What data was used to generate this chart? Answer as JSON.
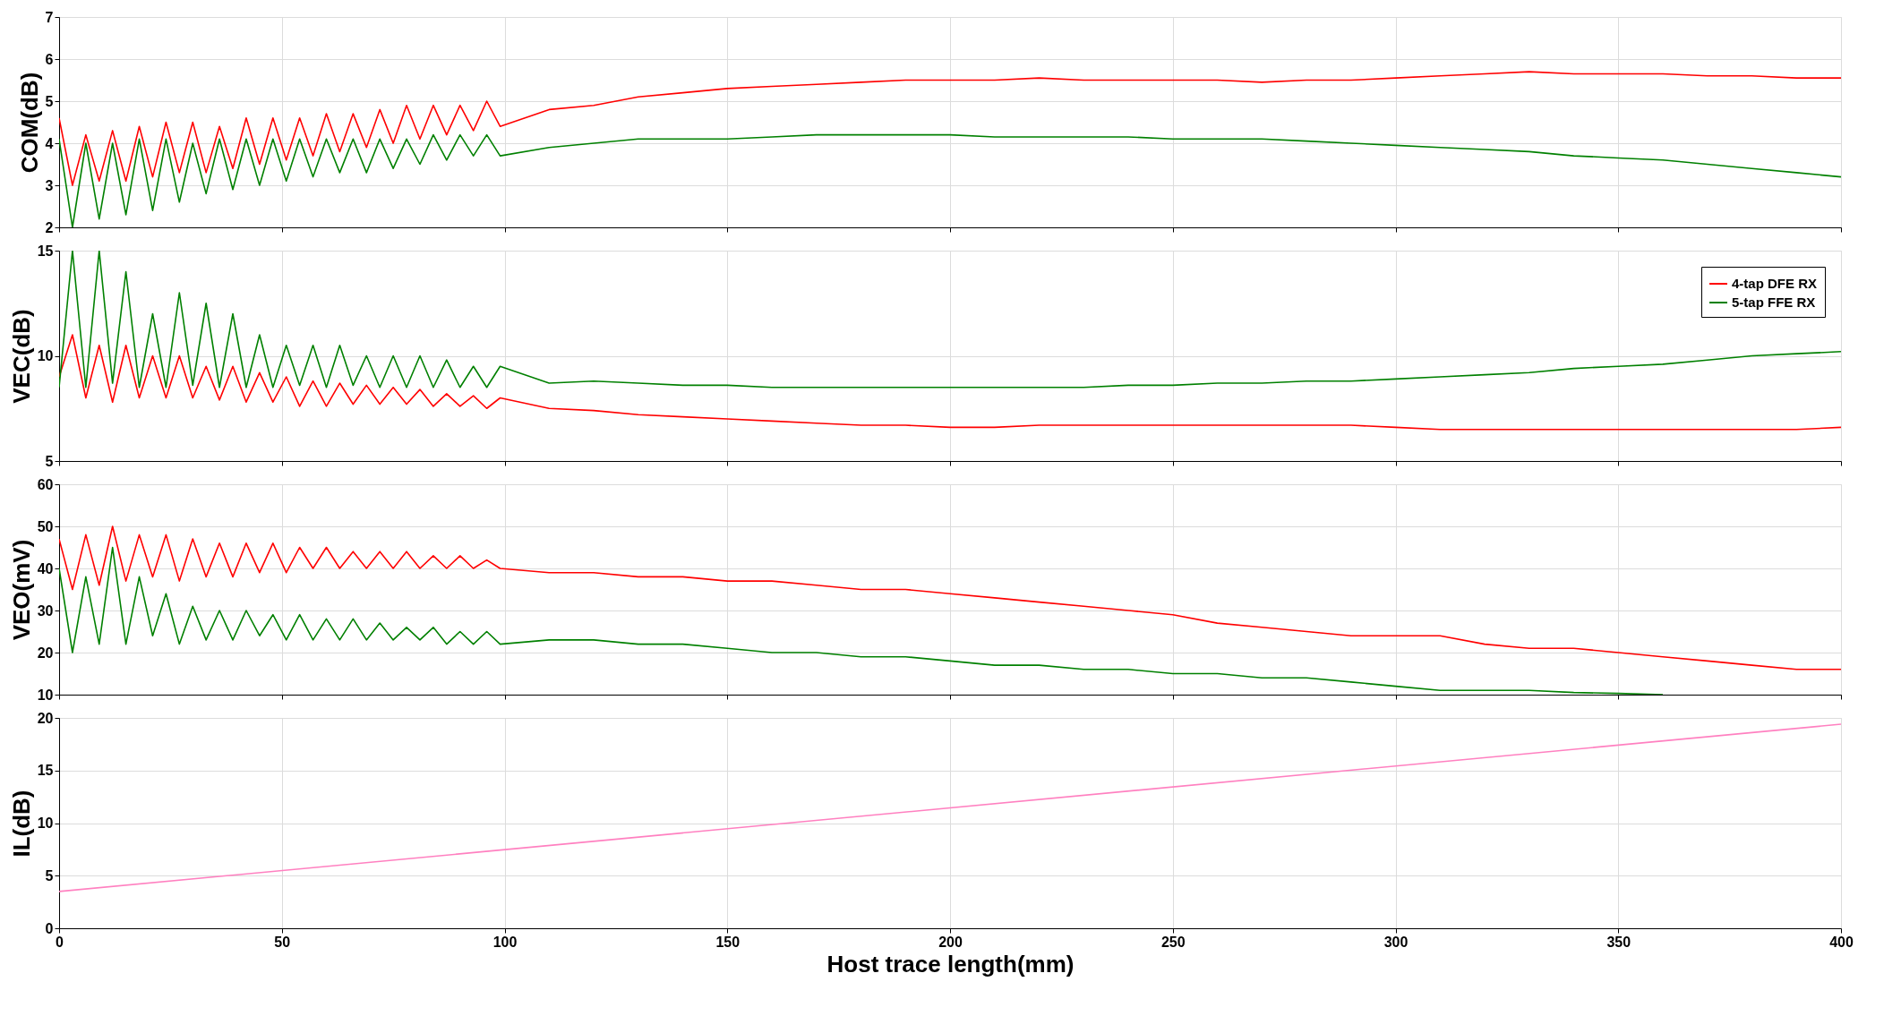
{
  "chart_data": [
    {
      "type": "line",
      "ylabel": "COM(dB)",
      "xlim": [
        0,
        400
      ],
      "xticks": [
        0,
        50,
        100,
        150,
        200,
        250,
        300,
        350,
        400
      ],
      "ylim": [
        2,
        7
      ],
      "yticks": [
        2,
        3,
        4,
        5,
        6,
        7
      ],
      "grid": true,
      "tick_labels": "y",
      "line_style": "solid",
      "x": [
        0,
        3,
        6,
        9,
        12,
        15,
        18,
        21,
        24,
        27,
        30,
        33,
        36,
        39,
        42,
        45,
        48,
        51,
        54,
        57,
        60,
        63,
        66,
        69,
        72,
        75,
        78,
        81,
        84,
        87,
        90,
        93,
        96,
        99,
        110,
        120,
        130,
        140,
        150,
        160,
        170,
        180,
        190,
        200,
        210,
        220,
        230,
        240,
        250,
        260,
        270,
        280,
        290,
        300,
        310,
        320,
        330,
        340,
        350,
        360,
        370,
        380,
        390,
        400
      ],
      "series": [
        {
          "color": "#ff0000",
          "values": [
            4.6,
            3.0,
            4.2,
            3.1,
            4.3,
            3.1,
            4.4,
            3.2,
            4.5,
            3.3,
            4.5,
            3.3,
            4.4,
            3.4,
            4.6,
            3.5,
            4.6,
            3.6,
            4.6,
            3.7,
            4.7,
            3.8,
            4.7,
            3.9,
            4.8,
            4.0,
            4.9,
            4.1,
            4.9,
            4.2,
            4.9,
            4.3,
            5.0,
            4.4,
            4.8,
            4.9,
            5.1,
            5.2,
            5.3,
            5.35,
            5.4,
            5.45,
            5.5,
            5.5,
            5.5,
            5.55,
            5.5,
            5.5,
            5.5,
            5.5,
            5.45,
            5.5,
            5.5,
            5.55,
            5.6,
            5.65,
            5.7,
            5.65,
            5.65,
            5.65,
            5.6,
            5.6,
            5.55,
            5.55
          ]
        },
        {
          "color": "#008000",
          "values": [
            4.1,
            2.0,
            4.0,
            2.2,
            4.0,
            2.3,
            4.1,
            2.4,
            4.1,
            2.6,
            4.0,
            2.8,
            4.1,
            2.9,
            4.1,
            3.0,
            4.1,
            3.1,
            4.1,
            3.2,
            4.1,
            3.3,
            4.1,
            3.3,
            4.1,
            3.4,
            4.1,
            3.5,
            4.2,
            3.6,
            4.2,
            3.7,
            4.2,
            3.7,
            3.9,
            4.0,
            4.1,
            4.1,
            4.1,
            4.15,
            4.2,
            4.2,
            4.2,
            4.2,
            4.15,
            4.15,
            4.15,
            4.15,
            4.1,
            4.1,
            4.1,
            4.05,
            4.0,
            3.95,
            3.9,
            3.85,
            3.8,
            3.7,
            3.65,
            3.6,
            3.5,
            3.4,
            3.3,
            3.2
          ]
        }
      ]
    },
    {
      "type": "line",
      "ylabel": "VEC(dB)",
      "xlim": [
        0,
        400
      ],
      "xticks": [
        0,
        50,
        100,
        150,
        200,
        250,
        300,
        350,
        400
      ],
      "ylim": [
        5,
        15
      ],
      "yticks": [
        5,
        10,
        15
      ],
      "grid": true,
      "tick_labels": "y",
      "legend": "top right",
      "line_style": "solid",
      "x": [
        0,
        3,
        6,
        9,
        12,
        15,
        18,
        21,
        24,
        27,
        30,
        33,
        36,
        39,
        42,
        45,
        48,
        51,
        54,
        57,
        60,
        63,
        66,
        69,
        72,
        75,
        78,
        81,
        84,
        87,
        90,
        93,
        96,
        99,
        110,
        120,
        130,
        140,
        150,
        160,
        170,
        180,
        190,
        200,
        210,
        220,
        230,
        240,
        250,
        260,
        270,
        280,
        290,
        300,
        310,
        320,
        330,
        340,
        350,
        360,
        370,
        380,
        390,
        400
      ],
      "series": [
        {
          "name": "4-tap DFE RX",
          "color": "#ff0000",
          "values": [
            9.0,
            11.0,
            8.0,
            10.5,
            7.8,
            10.5,
            8.0,
            10.0,
            8.0,
            10.0,
            8.0,
            9.5,
            7.9,
            9.5,
            7.8,
            9.2,
            7.8,
            9.0,
            7.6,
            8.8,
            7.6,
            8.7,
            7.7,
            8.6,
            7.7,
            8.5,
            7.7,
            8.4,
            7.6,
            8.2,
            7.6,
            8.1,
            7.5,
            8.0,
            7.5,
            7.4,
            7.2,
            7.1,
            7.0,
            6.9,
            6.8,
            6.7,
            6.7,
            6.6,
            6.6,
            6.7,
            6.7,
            6.7,
            6.7,
            6.7,
            6.7,
            6.7,
            6.7,
            6.6,
            6.5,
            6.5,
            6.5,
            6.5,
            6.5,
            6.5,
            6.5,
            6.5,
            6.5,
            6.6
          ]
        },
        {
          "name": "5-tap FFE RX",
          "color": "#008000",
          "values": [
            8.5,
            15.0,
            8.5,
            15.0,
            8.7,
            14.0,
            8.5,
            12.0,
            8.5,
            13.0,
            8.6,
            12.5,
            8.5,
            12.0,
            8.5,
            11.0,
            8.5,
            10.5,
            8.6,
            10.5,
            8.5,
            10.5,
            8.6,
            10.0,
            8.5,
            10.0,
            8.5,
            10.0,
            8.5,
            9.8,
            8.5,
            9.5,
            8.5,
            9.5,
            8.7,
            8.8,
            8.7,
            8.6,
            8.6,
            8.5,
            8.5,
            8.5,
            8.5,
            8.5,
            8.5,
            8.5,
            8.5,
            8.6,
            8.6,
            8.7,
            8.7,
            8.8,
            8.8,
            8.9,
            9.0,
            9.1,
            9.2,
            9.4,
            9.5,
            9.6,
            9.8,
            10.0,
            10.1,
            10.2
          ]
        }
      ]
    },
    {
      "type": "line",
      "ylabel": "VEO(mV)",
      "xlim": [
        0,
        400
      ],
      "xticks": [
        0,
        50,
        100,
        150,
        200,
        250,
        300,
        350,
        400
      ],
      "ylim": [
        10,
        60
      ],
      "yticks": [
        10,
        20,
        30,
        40,
        50,
        60
      ],
      "grid": true,
      "tick_labels": "y",
      "line_style": "solid",
      "x": [
        0,
        3,
        6,
        9,
        12,
        15,
        18,
        21,
        24,
        27,
        30,
        33,
        36,
        39,
        42,
        45,
        48,
        51,
        54,
        57,
        60,
        63,
        66,
        69,
        72,
        75,
        78,
        81,
        84,
        87,
        90,
        93,
        96,
        99,
        110,
        120,
        130,
        140,
        150,
        160,
        170,
        180,
        190,
        200,
        210,
        220,
        230,
        240,
        250,
        260,
        270,
        280,
        290,
        300,
        310,
        320,
        330,
        340,
        350,
        360,
        370,
        380,
        390,
        400
      ],
      "series": [
        {
          "color": "#ff0000",
          "values": [
            47,
            35,
            48,
            36,
            50,
            37,
            48,
            38,
            48,
            37,
            47,
            38,
            46,
            38,
            46,
            39,
            46,
            39,
            45,
            40,
            45,
            40,
            44,
            40,
            44,
            40,
            44,
            40,
            43,
            40,
            43,
            40,
            42,
            40,
            39,
            39,
            38,
            38,
            37,
            37,
            36,
            35,
            35,
            34,
            33,
            32,
            31,
            30,
            29,
            27,
            26,
            25,
            24,
            24,
            24,
            22,
            21,
            21,
            20,
            19,
            18,
            17,
            16,
            16
          ]
        },
        {
          "color": "#008000",
          "values": [
            40,
            20,
            38,
            22,
            45,
            22,
            38,
            24,
            34,
            22,
            31,
            23,
            30,
            23,
            30,
            24,
            29,
            23,
            29,
            23,
            28,
            23,
            28,
            23,
            27,
            23,
            26,
            23,
            26,
            22,
            25,
            22,
            25,
            22,
            23,
            23,
            22,
            22,
            21,
            20,
            20,
            19,
            19,
            18,
            17,
            17,
            16,
            16,
            15,
            15,
            14,
            14,
            13,
            12,
            11,
            11,
            11,
            10.5,
            10.3,
            10,
            null,
            null,
            null,
            null
          ]
        }
      ]
    },
    {
      "type": "line",
      "ylabel": "IL(dB)",
      "xlabel": "Host trace length(mm)",
      "xlim": [
        0,
        400
      ],
      "xticks": [
        0,
        50,
        100,
        150,
        200,
        250,
        300,
        350,
        400
      ],
      "ylim": [
        0,
        20
      ],
      "yticks": [
        0,
        5,
        10,
        15,
        20
      ],
      "grid": true,
      "line_style": "solid",
      "x": [
        0,
        400
      ],
      "series": [
        {
          "color": "#ff80c0",
          "values": [
            3.5,
            19.4
          ]
        }
      ]
    }
  ]
}
